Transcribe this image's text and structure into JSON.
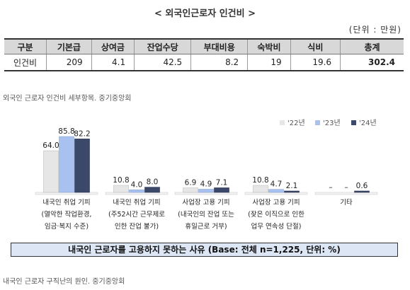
{
  "table_title": "< 외국인근로자 인건비 >",
  "unit": "(단위 : 만원)",
  "table": {
    "headers": [
      "구분",
      "기본급",
      "상여금",
      "잔업수당",
      "부대비용",
      "숙박비",
      "식비",
      "총계"
    ],
    "row": [
      "인건비",
      "209",
      "4.1",
      "42.5",
      "8.2",
      "19",
      "19.6",
      "302.4"
    ]
  },
  "caption1": "외국인 근로자 인건비 세부항목. 중기중앙회",
  "caption2": "내국인 근로자 구직난의 원인. 중기중앙회",
  "footer": "내국인 근로자를 고용하지 못하는 사유 (Base: 전체 n=1,225, 단위: %)",
  "colors": {
    "y22": "#e6e6e6",
    "y23": "#a9c1ee",
    "y24": "#3b4869"
  },
  "chart_data": {
    "type": "bar",
    "categories": [
      [
        "내국인 취업 기피",
        "(열악한 작업환경,",
        "임금·복지 수준)"
      ],
      [
        "내국인 취업 기피",
        "(주52시간 근무제로",
        "인한 잔업 불가)"
      ],
      [
        "사업장 고용 기피",
        "(내국인의 잔업 또는",
        "휴일근로 거부)"
      ],
      [
        "사업장 고용 기피",
        "(잦은 이직으로 인한",
        "업무 연속성 단절)"
      ],
      [
        "기타"
      ]
    ],
    "series": [
      {
        "name": "'22년",
        "values": [
          64.0,
          10.8,
          6.9,
          10.8,
          null
        ],
        "labels": [
          "64.0",
          "10.8",
          "6.9",
          "10.8",
          "–"
        ]
      },
      {
        "name": "'23년",
        "values": [
          85.8,
          4.0,
          4.9,
          4.7,
          null
        ],
        "labels": [
          "85.8",
          "4.0",
          "4.9",
          "4.7",
          "–"
        ]
      },
      {
        "name": "'24년",
        "values": [
          82.2,
          8.0,
          7.1,
          2.1,
          0.6
        ],
        "labels": [
          "82.2",
          "8.0",
          "7.1",
          "2.1",
          "0.6"
        ]
      }
    ],
    "ylim": [
      0,
      100
    ]
  }
}
